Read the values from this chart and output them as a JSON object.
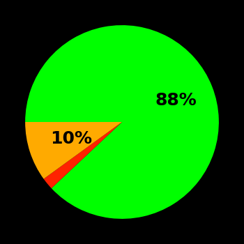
{
  "slices": [
    88,
    2,
    10
  ],
  "colors": [
    "#00ff00",
    "#ff2200",
    "#ffaa00"
  ],
  "labels": [
    "88%",
    "",
    "10%"
  ],
  "label_radii": [
    0.6,
    0.0,
    0.55
  ],
  "background_color": "#000000",
  "label_fontsize": 18,
  "label_fontweight": "bold",
  "startangle": 180,
  "counterclock": false,
  "figsize": [
    3.5,
    3.5
  ],
  "dpi": 100
}
